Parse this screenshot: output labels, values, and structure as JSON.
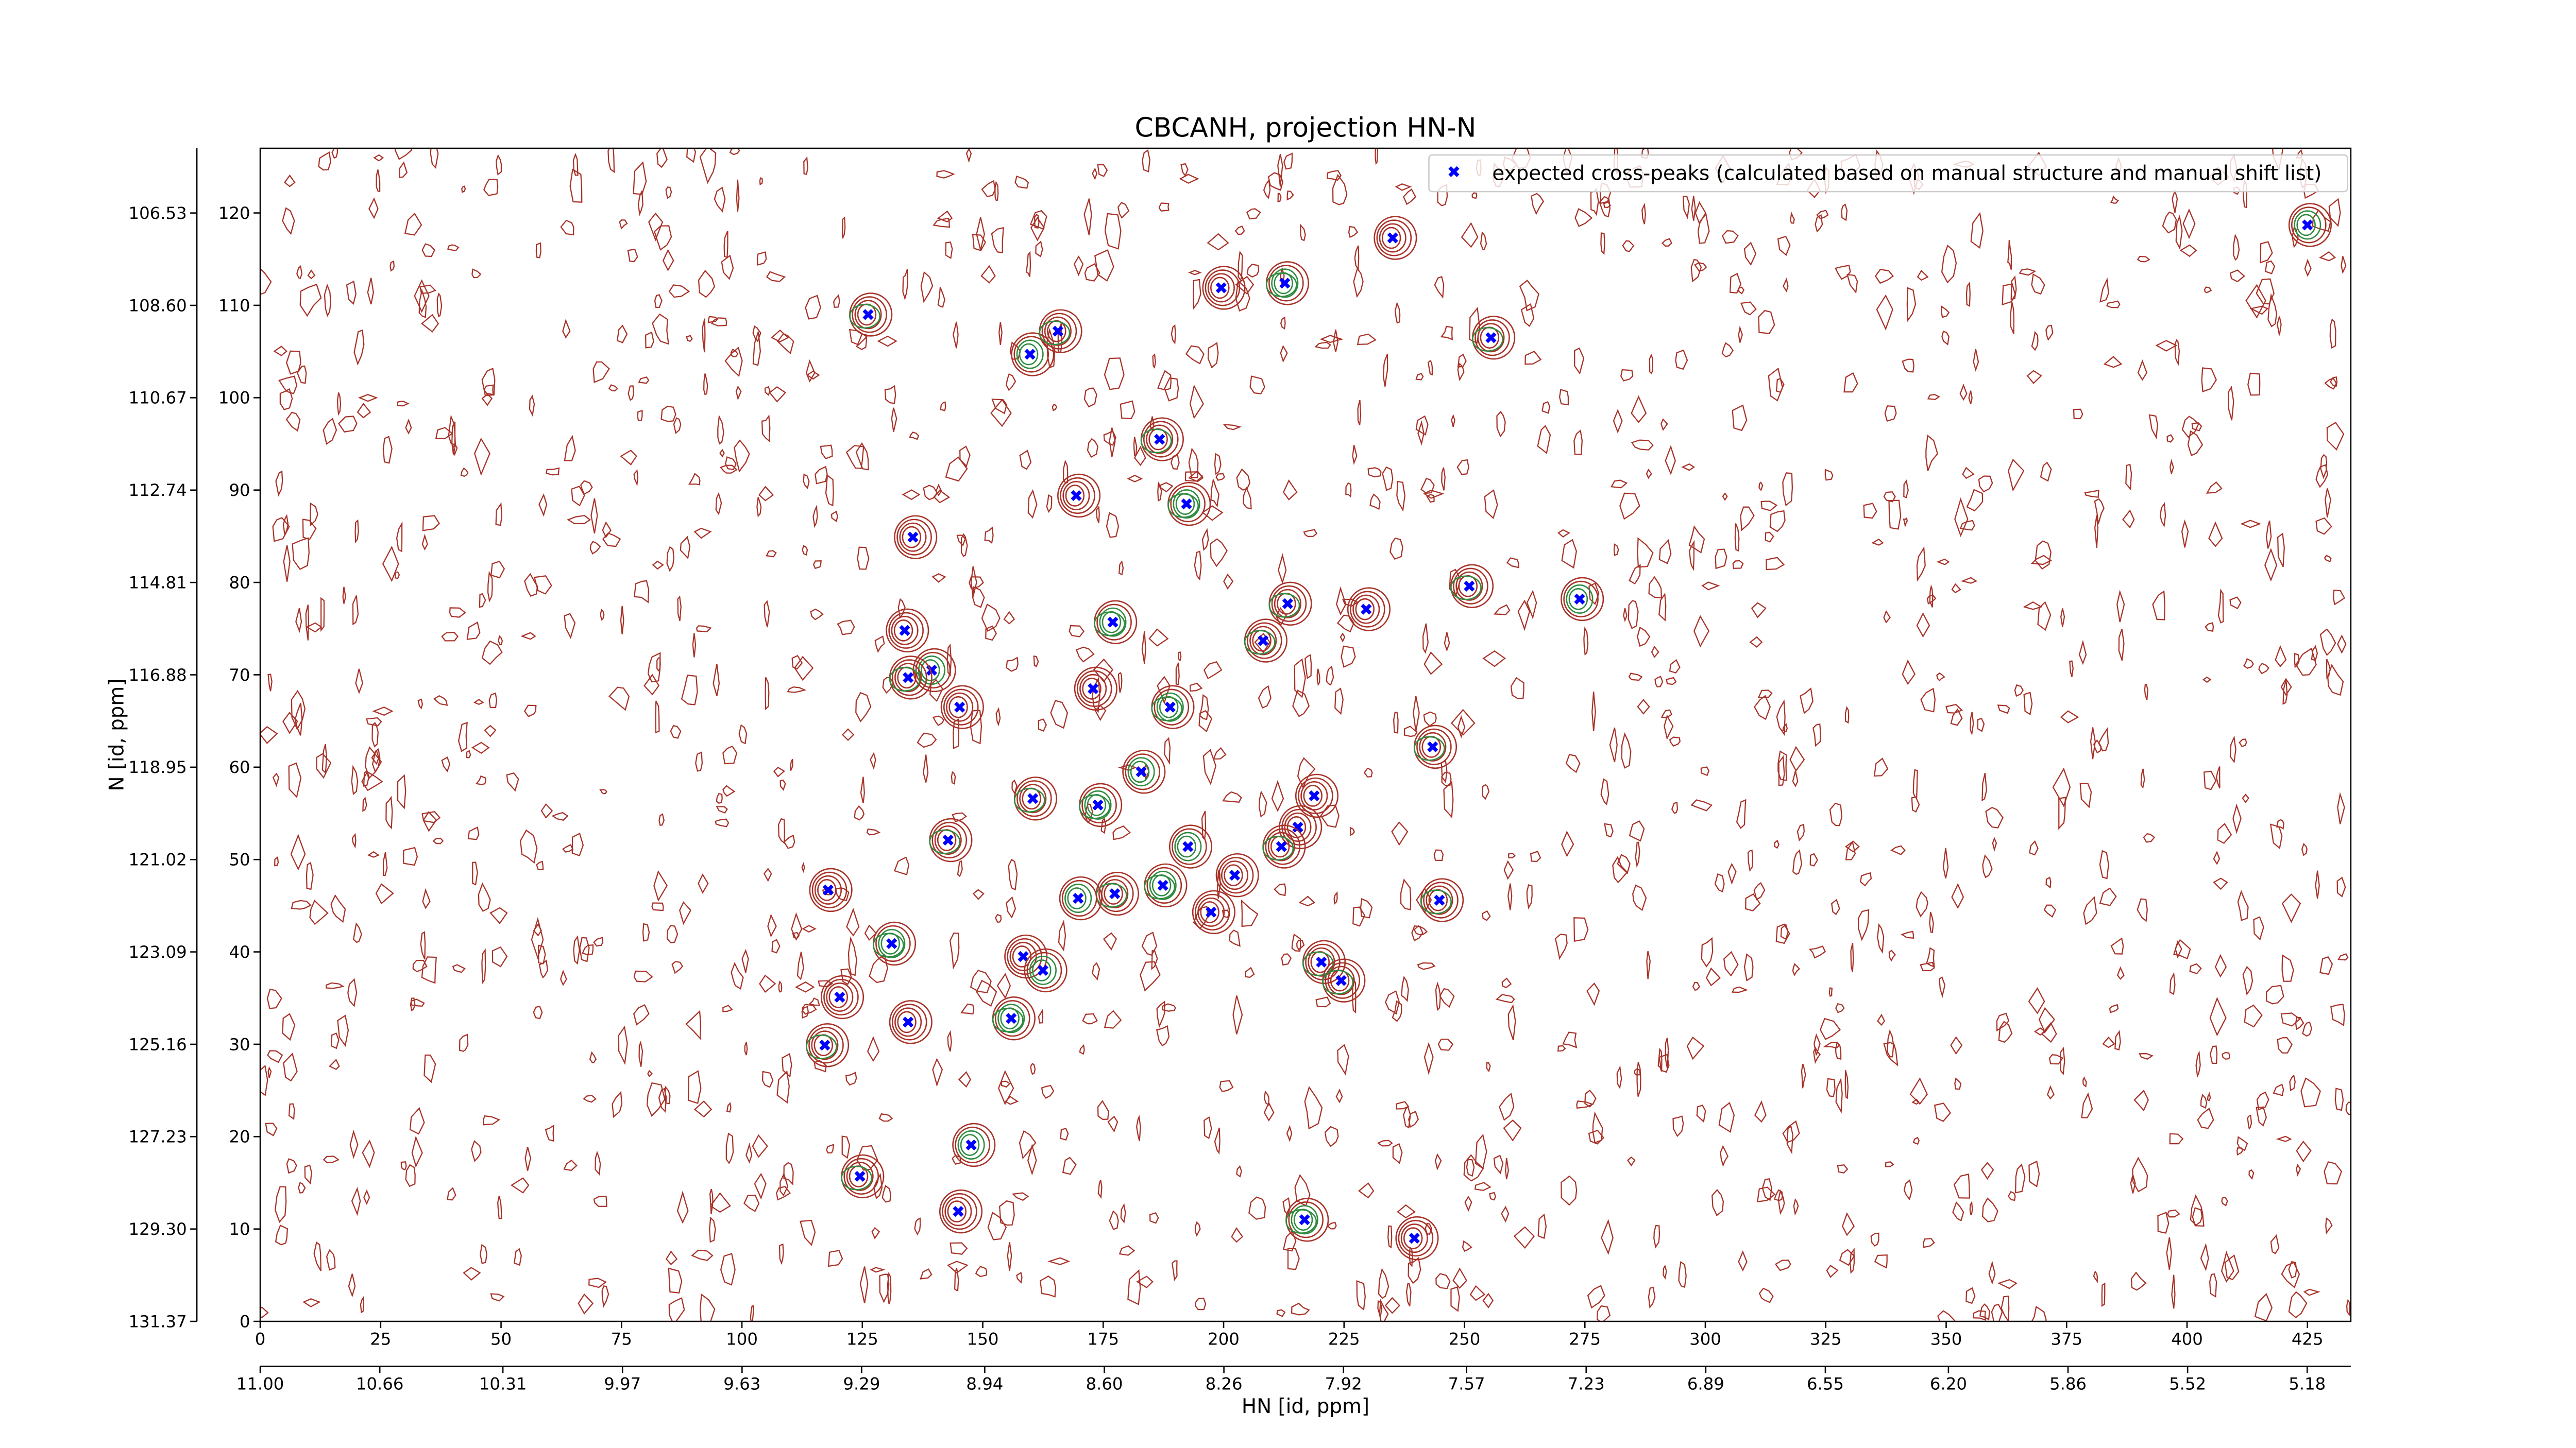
{
  "chart_data": {
    "type": "scatter",
    "title": "CBCANH, projection HN-N",
    "xlabel": "HN [id, ppm]",
    "ylabel": "N [id, ppm]",
    "legend": "upper right",
    "xlim": [
      0,
      434
    ],
    "xticks": [
      0,
      25,
      50,
      75,
      100,
      125,
      150,
      175,
      200,
      225,
      250,
      275,
      300,
      325,
      350,
      375,
      400,
      425
    ],
    "ylim": [
      0,
      127
    ],
    "yticks": [
      0,
      10,
      20,
      30,
      40,
      50,
      60,
      70,
      80,
      90,
      100,
      110,
      120
    ],
    "x2lim": [
      11.0,
      5.056
    ],
    "x2ticks": [
      {
        "value": 11.0,
        "label": "11.00"
      },
      10.66,
      10.31,
      9.97,
      9.63,
      9.29,
      8.94,
      {
        "value": 8.6,
        "label": "8.60"
      },
      8.26,
      7.92,
      7.57,
      7.23,
      6.89,
      6.55,
      {
        "value": 6.2,
        "label": "6.20"
      },
      5.86,
      5.52,
      5.18
    ],
    "y2lim": [
      131.37,
      105.08
    ],
    "y2ticks": [
      131.37,
      {
        "value": 129.3,
        "label": "129.30"
      },
      127.23,
      125.16,
      123.09,
      121.02,
      118.95,
      116.88,
      114.81,
      112.74,
      110.67,
      {
        "value": 108.6,
        "label": "108.60"
      },
      106.53
    ],
    "series": [
      {
        "name": "expected cross-peaks (calculated based on manual structure and manual shift list)",
        "color": "#0000ff",
        "x": [
          126.2,
          159.8,
          165.6,
          199.5,
          212.7,
          235.1,
          255.5,
          425.0,
          186.7,
          169.4,
          192.3,
          135.5,
          251.0,
          273.9,
          213.3,
          229.6,
          177.0,
          133.8,
          208.2,
          139.4,
          134.5,
          172.9,
          188.9,
          145.2,
          243.4,
          182.9,
          160.4,
          218.8,
          173.9,
          215.4,
          142.8,
          192.6,
          212.0,
          202.3,
          187.4,
          117.9,
          177.4,
          169.8,
          244.8,
          197.4,
          131.1,
          158.4,
          220.3,
          162.5,
          224.4,
          120.3,
          155.9,
          134.5,
          117.2,
          147.6,
          124.5,
          144.9,
          216.8,
          239.6
        ],
        "y": [
          109.0,
          104.7,
          107.2,
          111.9,
          112.4,
          117.3,
          106.5,
          118.7,
          95.5,
          89.4,
          88.5,
          84.9,
          79.6,
          78.2,
          77.7,
          77.1,
          75.7,
          74.8,
          73.7,
          70.5,
          69.7,
          68.5,
          66.5,
          66.5,
          62.2,
          59.5,
          56.6,
          56.9,
          55.9,
          53.5,
          52.1,
          51.4,
          51.4,
          48.3,
          47.2,
          46.7,
          46.3,
          45.8,
          45.6,
          44.3,
          40.9,
          39.5,
          38.9,
          38.0,
          36.9,
          35.1,
          32.8,
          32.4,
          29.9,
          19.1,
          15.7,
          11.9,
          11.0,
          9.0
        ]
      }
    ]
  }
}
